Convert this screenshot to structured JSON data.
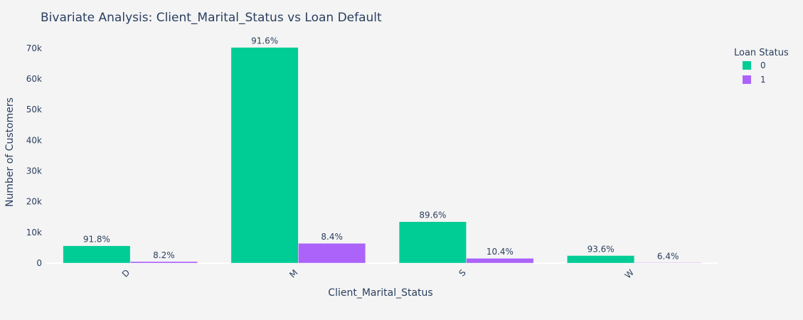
{
  "chart_data": {
    "type": "bar",
    "title": "Bivariate Analysis: Client_Marital_Status vs Loan Default",
    "xlabel": "Client_Marital_Status",
    "ylabel": "Number of Customers",
    "categories": [
      "D",
      "M",
      "S",
      "W"
    ],
    "series": [
      {
        "name": "0",
        "color": "#00cc96",
        "values": [
          5650,
          70300,
          13500,
          2450
        ],
        "labels": [
          "91.8%",
          "91.6%",
          "89.6%",
          "93.6%"
        ]
      },
      {
        "name": "1",
        "color": "#ab63fa",
        "values": [
          505,
          6450,
          1570,
          168
        ],
        "labels": [
          "8.2%",
          "8.4%",
          "10.4%",
          "6.4%"
        ]
      }
    ],
    "ylim": [
      0,
      73000
    ],
    "yticks": [
      0,
      10000,
      20000,
      30000,
      40000,
      50000,
      60000,
      70000
    ],
    "ytick_labels": [
      "0",
      "10k",
      "20k",
      "30k",
      "40k",
      "50k",
      "60k",
      "70k"
    ],
    "legend": {
      "title": "Loan Status",
      "position": "top-right"
    },
    "grid": false
  }
}
